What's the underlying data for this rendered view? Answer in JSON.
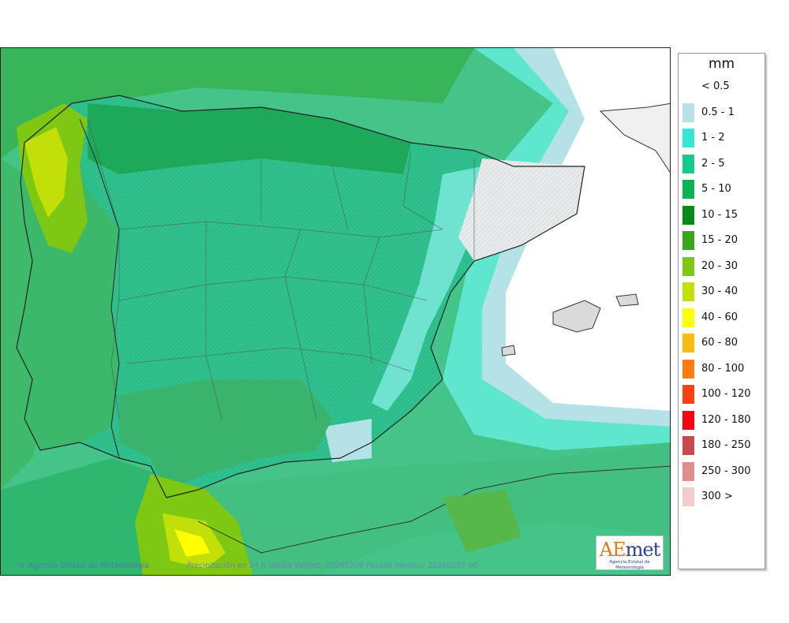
{
  "legend": {
    "title": "mm",
    "entries": [
      {
        "label": "< 0.5",
        "color": "#ffffff"
      },
      {
        "label": "0.5 - 1",
        "color": "#b4e2e6"
      },
      {
        "label": "1 - 2",
        "color": "#33e6d6"
      },
      {
        "label": "2 - 5",
        "color": "#13cc8e"
      },
      {
        "label": "5 - 10",
        "color": "#0ab453"
      },
      {
        "label": "10 - 15",
        "color": "#088a14"
      },
      {
        "label": "15 - 20",
        "color": "#37a81b"
      },
      {
        "label": "20 - 30",
        "color": "#7ec712"
      },
      {
        "label": "30 - 40",
        "color": "#c2df0a"
      },
      {
        "label": "40 - 60",
        "color": "#ffff00"
      },
      {
        "label": "60 - 80",
        "color": "#ffba10"
      },
      {
        "label": "80 - 100",
        "color": "#ff7b10"
      },
      {
        "label": "100 - 120",
        "color": "#ff4010"
      },
      {
        "label": "120 - 180",
        "color": "#ff0010"
      },
      {
        "label": "180 - 250",
        "color": "#c84a4a"
      },
      {
        "label": "250 - 300",
        "color": "#e08e8e"
      },
      {
        "label": "300 >",
        "color": "#f5cccc"
      }
    ]
  },
  "footer": {
    "copyright": "© Agencia Estatal de Meteorología",
    "validity": "Precipitación en 24 h media  Validez: 20260209  Pasada modelo: 20260207 00"
  },
  "logo": {
    "wordmark_a": "A",
    "wordmark_e": "E",
    "wordmark_rest": "met",
    "subtitle": "Agencia Estatal de Meteorología"
  }
}
